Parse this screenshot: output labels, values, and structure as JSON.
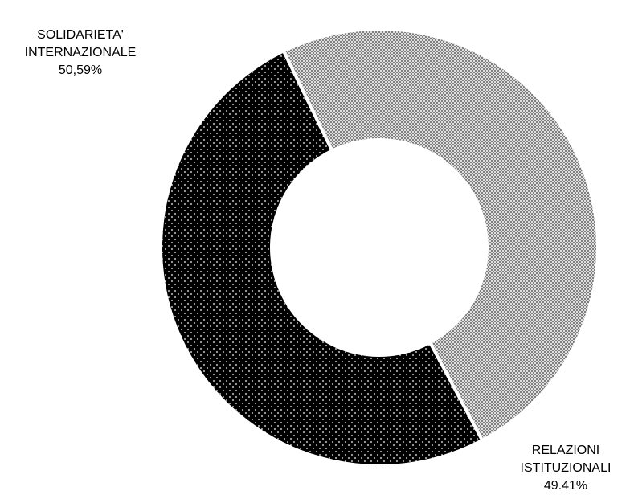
{
  "chart_data": {
    "type": "pie",
    "style": "donut",
    "slices": [
      {
        "label_lines": [
          "SOLIDARIETA'",
          "INTERNAZIONALE"
        ],
        "value": 50.59,
        "value_text": "50,59%",
        "color": "#000000",
        "pattern": "dots"
      },
      {
        "label_lines": [
          "RELAZIONI",
          "ISTITUZIONALI"
        ],
        "value": 49.41,
        "value_text": "49.41%",
        "color": "#bdbdbd",
        "pattern": "crosshatch"
      }
    ],
    "legend": "none"
  }
}
